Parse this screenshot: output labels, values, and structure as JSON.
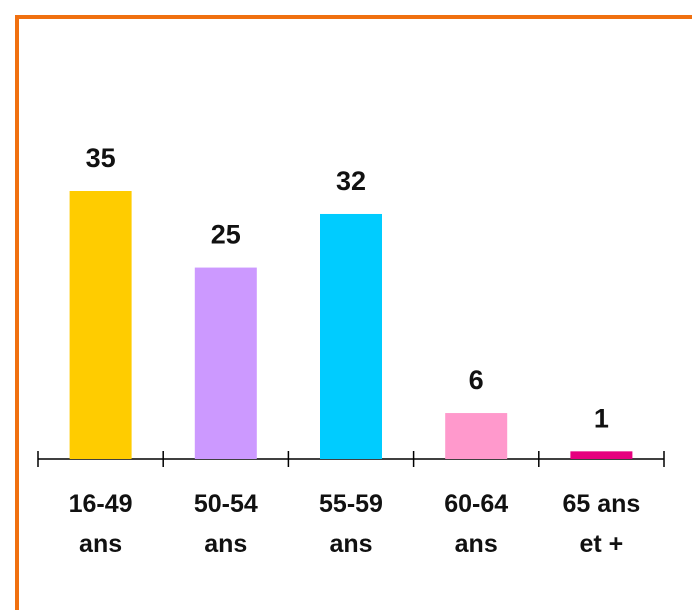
{
  "chart_data": {
    "type": "bar",
    "categories": [
      "16-49\nans",
      "50-54\nans",
      "55-59\nans",
      "60-64\nans",
      "65 ans\net +"
    ],
    "values": [
      35,
      25,
      32,
      6,
      1
    ],
    "colors": [
      "#ffcc00",
      "#cc99ff",
      "#00ccff",
      "#ff99cc",
      "#e6007e"
    ]
  }
}
